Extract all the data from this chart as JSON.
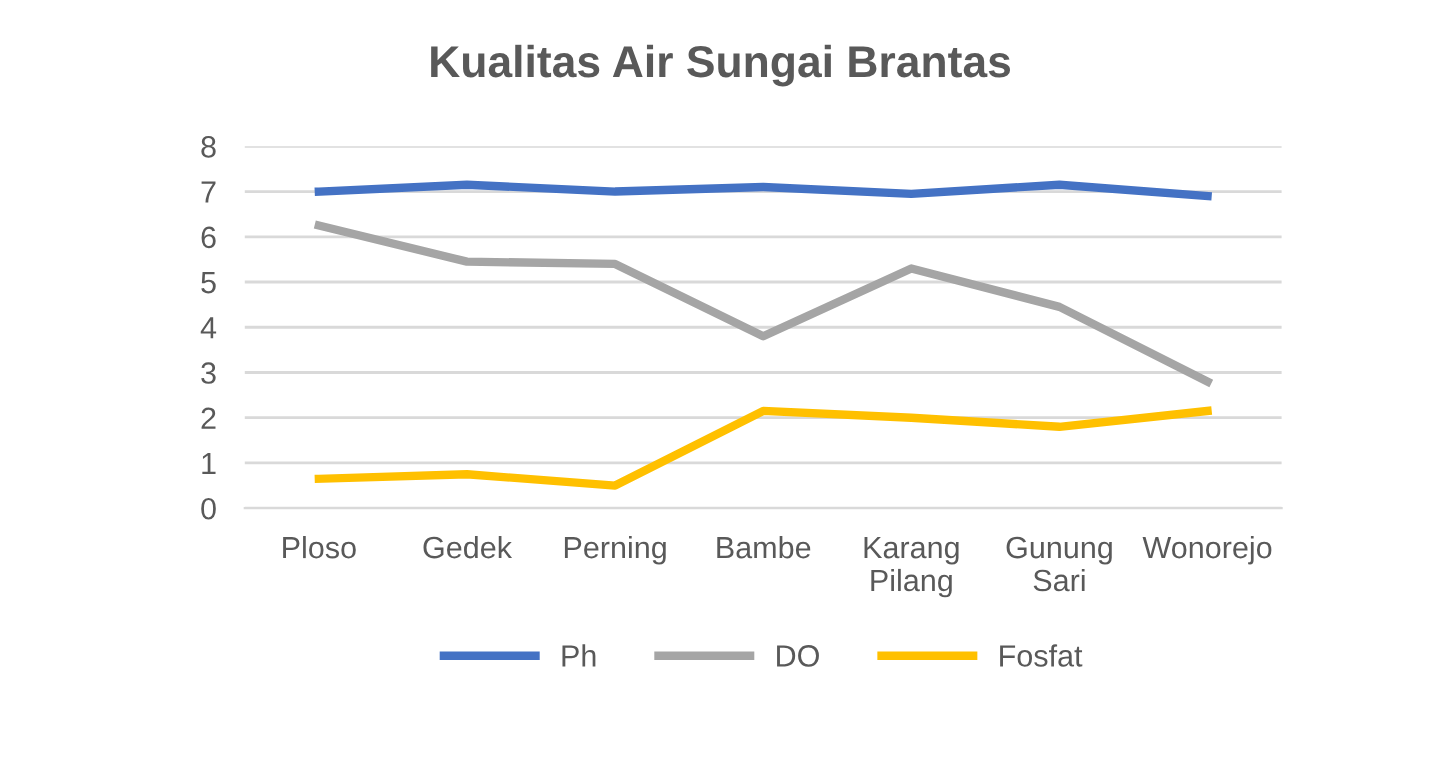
{
  "chart_data": {
    "type": "line",
    "title": "Kualitas Air Sungai Brantas",
    "categories": [
      "Ploso",
      "Gedek",
      "Perning",
      "Bambe",
      "Karang\nPilang",
      "Gunung\nSari",
      "Wonorejo"
    ],
    "series": [
      {
        "name": "Ph",
        "color": "#4472c4",
        "values": [
          7.0,
          7.15,
          7.0,
          7.1,
          6.95,
          7.15,
          6.9
        ]
      },
      {
        "name": "DO",
        "color": "#a5a5a5",
        "values": [
          6.25,
          5.45,
          5.4,
          3.8,
          5.3,
          4.45,
          2.8
        ]
      },
      {
        "name": "Fosfat",
        "color": "#ffc000",
        "values": [
          0.65,
          0.75,
          0.5,
          2.15,
          2.0,
          1.8,
          2.15
        ]
      }
    ],
    "ylim": [
      0,
      8
    ],
    "yticks": [
      0,
      1,
      2,
      3,
      4,
      5,
      6,
      7,
      8
    ],
    "grid": "y",
    "legend": "bottom",
    "marker": "none",
    "line_style": "solid"
  }
}
